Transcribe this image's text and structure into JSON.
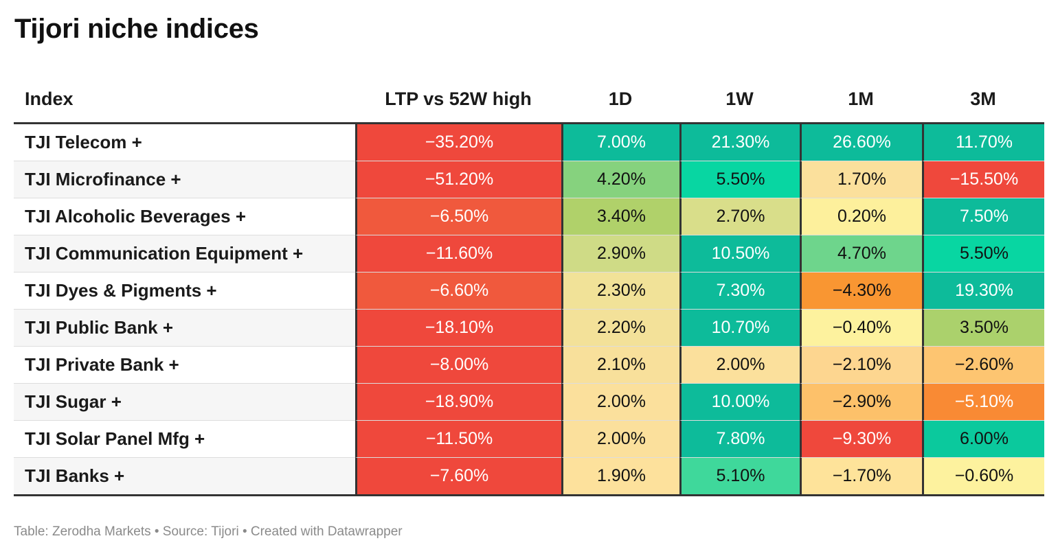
{
  "title": "Tijori niche indices",
  "footer": "Table: Zerodha Markets • Source: Tijori • Created with Datawrapper",
  "chart_data": {
    "type": "table",
    "title": "Tijori niche indices",
    "columns": [
      "Index",
      "LTP vs 52W high",
      "1D",
      "1W",
      "1M",
      "3M"
    ],
    "rows": [
      {
        "index": "TJI Telecom +",
        "values": [
          "−35.20%",
          "7.00%",
          "21.30%",
          "26.60%",
          "11.70%"
        ],
        "colors": [
          "#ef483c",
          "#0dbb9a",
          "#0dbb9a",
          "#0dbb9a",
          "#0dbb9a"
        ],
        "text_colors": [
          "#ffffff",
          "#ffffff",
          "#ffffff",
          "#ffffff",
          "#ffffff"
        ]
      },
      {
        "index": "TJI Microfinance +",
        "values": [
          "−51.20%",
          "4.20%",
          "5.50%",
          "1.70%",
          "−15.50%"
        ],
        "colors": [
          "#ef483c",
          "#86d27e",
          "#08d6a2",
          "#fbe09c",
          "#ef483c"
        ],
        "text_colors": [
          "#ffffff",
          "#111111",
          "#111111",
          "#111111",
          "#ffffff"
        ]
      },
      {
        "index": "TJI Alcoholic Beverages +",
        "values": [
          "−6.50%",
          "3.40%",
          "2.70%",
          "0.20%",
          "7.50%"
        ],
        "colors": [
          "#f0593d",
          "#b0d16a",
          "#d9de8a",
          "#fdf09c",
          "#0dbb9a"
        ],
        "text_colors": [
          "#ffffff",
          "#111111",
          "#111111",
          "#111111",
          "#ffffff"
        ]
      },
      {
        "index": "TJI Communication Equipment +",
        "values": [
          "−11.60%",
          "2.90%",
          "10.50%",
          "4.70%",
          "5.50%"
        ],
        "colors": [
          "#ef483c",
          "#cfdb86",
          "#0dbb9a",
          "#6ed58c",
          "#08d6a2"
        ],
        "text_colors": [
          "#ffffff",
          "#111111",
          "#ffffff",
          "#111111",
          "#111111"
        ]
      },
      {
        "index": "TJI Dyes & Pigments +",
        "values": [
          "−6.60%",
          "2.30%",
          "7.30%",
          "−4.30%",
          "19.30%"
        ],
        "colors": [
          "#f0593d",
          "#f1e298",
          "#0dbb9a",
          "#f99632",
          "#0dbb9a"
        ],
        "text_colors": [
          "#ffffff",
          "#111111",
          "#ffffff",
          "#111111",
          "#ffffff"
        ]
      },
      {
        "index": "TJI Public Bank +",
        "values": [
          "−18.10%",
          "2.20%",
          "10.70%",
          "−0.40%",
          "3.50%"
        ],
        "colors": [
          "#ef483c",
          "#f3e199",
          "#0dbb9a",
          "#fdf29e",
          "#abd16c"
        ],
        "text_colors": [
          "#ffffff",
          "#111111",
          "#ffffff",
          "#111111",
          "#111111"
        ]
      },
      {
        "index": "TJI Private Bank +",
        "values": [
          "−8.00%",
          "2.10%",
          "2.00%",
          "−2.10%",
          "−2.60%"
        ],
        "colors": [
          "#ef483c",
          "#f8e09b",
          "#fbe09c",
          "#fdd690",
          "#fdc571"
        ],
        "text_colors": [
          "#ffffff",
          "#111111",
          "#111111",
          "#111111",
          "#111111"
        ]
      },
      {
        "index": "TJI Sugar +",
        "values": [
          "−18.90%",
          "2.00%",
          "10.00%",
          "−2.90%",
          "−5.10%"
        ],
        "colors": [
          "#ef483c",
          "#fbe09c",
          "#0dbb9a",
          "#fdc16a",
          "#f98a34"
        ],
        "text_colors": [
          "#ffffff",
          "#111111",
          "#ffffff",
          "#111111",
          "#ffffff"
        ]
      },
      {
        "index": "TJI Solar Panel Mfg +",
        "values": [
          "−11.50%",
          "2.00%",
          "7.80%",
          "−9.30%",
          "6.00%"
        ],
        "colors": [
          "#ef483c",
          "#fbe09c",
          "#0dbb9a",
          "#ef483c",
          "#0bc99d"
        ],
        "text_colors": [
          "#ffffff",
          "#111111",
          "#ffffff",
          "#ffffff",
          "#111111"
        ]
      },
      {
        "index": "TJI Banks +",
        "values": [
          "−7.60%",
          "1.90%",
          "5.10%",
          "−1.70%",
          "−0.60%"
        ],
        "colors": [
          "#ef483c",
          "#fde19c",
          "#3fd89b",
          "#fee39a",
          "#fdf29e"
        ],
        "text_colors": [
          "#ffffff",
          "#111111",
          "#111111",
          "#111111",
          "#111111"
        ]
      }
    ]
  }
}
